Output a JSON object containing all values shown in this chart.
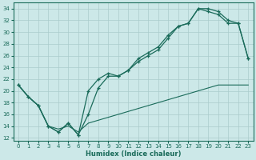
{
  "xlabel": "Humidex (Indice chaleur)",
  "bg_color": "#cce8e8",
  "grid_color": "#aacccc",
  "line_color": "#1a6b5a",
  "xlim": [
    -0.5,
    23.5
  ],
  "ylim": [
    11.5,
    35
  ],
  "yticks": [
    12,
    14,
    16,
    18,
    20,
    22,
    24,
    26,
    28,
    30,
    32,
    34
  ],
  "xticks": [
    0,
    1,
    2,
    3,
    4,
    5,
    6,
    7,
    8,
    9,
    10,
    11,
    12,
    13,
    14,
    15,
    16,
    17,
    18,
    19,
    20,
    21,
    22,
    23
  ],
  "line1_x": [
    0,
    1,
    2,
    3,
    4,
    5,
    6,
    7,
    8,
    9,
    10,
    11,
    12,
    13,
    14,
    15,
    16,
    17,
    18,
    19,
    20,
    21,
    22,
    23
  ],
  "line1_y": [
    21.0,
    19.0,
    17.5,
    14.0,
    13.0,
    14.5,
    12.5,
    20.0,
    22.0,
    23.0,
    22.5,
    23.5,
    25.5,
    26.5,
    27.5,
    29.5,
    31.0,
    31.5,
    34.0,
    34.0,
    33.5,
    32.0,
    31.5,
    25.5
  ],
  "line2_x": [
    0,
    1,
    2,
    3,
    4,
    5,
    6,
    7,
    8,
    9,
    10,
    11,
    12,
    13,
    14,
    15,
    16,
    17,
    18,
    19,
    20,
    21,
    22,
    23
  ],
  "line2_y": [
    21.0,
    19.0,
    17.5,
    14.0,
    13.0,
    14.5,
    12.5,
    16.0,
    20.5,
    22.5,
    22.5,
    23.5,
    25.0,
    26.0,
    27.0,
    29.0,
    31.0,
    31.5,
    34.0,
    33.5,
    33.0,
    31.5,
    31.5,
    25.5
  ],
  "line3_x": [
    0,
    1,
    2,
    3,
    4,
    5,
    6,
    7,
    8,
    9,
    10,
    11,
    12,
    13,
    14,
    15,
    16,
    17,
    18,
    19,
    20,
    21,
    22,
    23
  ],
  "line3_y": [
    21.0,
    19.0,
    17.5,
    14.0,
    13.5,
    14.0,
    13.0,
    14.5,
    15.0,
    15.5,
    16.0,
    16.5,
    17.0,
    17.5,
    18.0,
    18.5,
    19.0,
    19.5,
    20.0,
    20.5,
    21.0,
    21.0,
    21.0,
    21.0
  ]
}
